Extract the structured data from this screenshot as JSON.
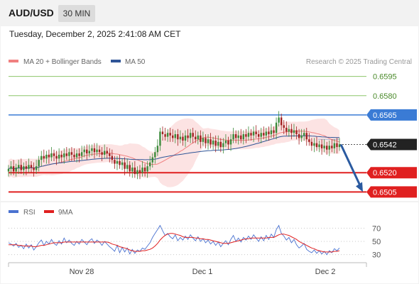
{
  "header": {
    "symbol": "AUD/USD",
    "timeframe": "30 MIN"
  },
  "datetime": "Tuesday, December 2, 2025 2:41:08 AM CET",
  "legend": {
    "ma20": "MA 20 + Bollinger Bands",
    "ma50": "MA 50"
  },
  "credit": "Research © 2025 Trading Central",
  "colors": {
    "ma20": "#f08080",
    "ma50": "#2f5597",
    "up": "#3a8a3a",
    "down": "#a02020",
    "resistance_green": "#8cc66a",
    "pivot_blue": "#3a7bd5",
    "support_red": "#e02020",
    "arrow": "#2a5aa0",
    "rsi": "#4a72d0",
    "rsi_ma": "#e02020"
  },
  "chart_data": [
    {
      "type": "candlestick",
      "title": "",
      "ylim": [
        0.6498,
        0.6602
      ],
      "x_tick_labels": [
        "Nov 28",
        "Dec 1",
        "Dec 2"
      ],
      "levels": [
        {
          "value": 0.6595,
          "label": "0.6595",
          "style": "resistance"
        },
        {
          "value": 0.658,
          "label": "0.6580",
          "style": "resistance"
        },
        {
          "value": 0.6565,
          "label": "0.6565",
          "style": "pivot"
        },
        {
          "value": 0.6542,
          "label": "0.6542",
          "style": "last"
        },
        {
          "value": 0.652,
          "label": "0.6520",
          "style": "support"
        },
        {
          "value": 0.6505,
          "label": "0.6505",
          "style": "support"
        }
      ],
      "forecast_arrow": {
        "from": 0.6542,
        "to": 0.6505,
        "direction": "down"
      },
      "series": [
        {
          "name": "MA 20 + Bollinger Bands"
        },
        {
          "name": "MA 50"
        }
      ],
      "close": [
        0.6523,
        0.6525,
        0.6521,
        0.6524,
        0.6526,
        0.6522,
        0.6525,
        0.6523,
        0.6526,
        0.6524,
        0.6522,
        0.6525,
        0.653,
        0.6533,
        0.6531,
        0.6534,
        0.6532,
        0.6535,
        0.6533,
        0.6531,
        0.6534,
        0.6532,
        0.6535,
        0.6533,
        0.6536,
        0.6534,
        0.6532,
        0.6535,
        0.6533,
        0.6536,
        0.6538,
        0.6535,
        0.6537,
        0.6539,
        0.6536,
        0.6538,
        0.6536,
        0.6534,
        0.6537,
        0.6535,
        0.6533,
        0.653,
        0.6527,
        0.6529,
        0.6526,
        0.6528,
        0.6523,
        0.6526,
        0.6521,
        0.6524,
        0.6519,
        0.6522,
        0.652,
        0.6524,
        0.6521,
        0.6525,
        0.6528,
        0.6532,
        0.6536,
        0.6541,
        0.6552,
        0.655,
        0.6548,
        0.6551,
        0.6549,
        0.6547,
        0.655,
        0.6546,
        0.6548,
        0.6545,
        0.6549,
        0.6547,
        0.6551,
        0.6548,
        0.6546,
        0.6549,
        0.6544,
        0.6547,
        0.6543,
        0.6546,
        0.6542,
        0.6545,
        0.6541,
        0.6544,
        0.654,
        0.6543,
        0.6545,
        0.6542,
        0.6546,
        0.655,
        0.6547,
        0.6549,
        0.6546,
        0.655,
        0.6548,
        0.6551,
        0.6549,
        0.6552,
        0.655,
        0.6548,
        0.6551,
        0.6549,
        0.6552,
        0.655,
        0.6553,
        0.6551,
        0.6559,
        0.6563,
        0.6557,
        0.6555,
        0.6552,
        0.6554,
        0.6551,
        0.6553,
        0.655,
        0.6547,
        0.6549,
        0.6551,
        0.6546,
        0.6544,
        0.6541,
        0.6543,
        0.654,
        0.6542,
        0.6539,
        0.6541,
        0.6538,
        0.6541,
        0.6539,
        0.6543,
        0.654,
        0.6542
      ]
    },
    {
      "type": "line",
      "title": "",
      "ylim": [
        20,
        80
      ],
      "y_ticks": [
        70,
        50,
        30
      ],
      "series": [
        {
          "name": "RSI"
        },
        {
          "name": "9MA"
        }
      ],
      "rsi": [
        48,
        46,
        43,
        47,
        41,
        44,
        39,
        46,
        40,
        45,
        37,
        42,
        48,
        52,
        44,
        50,
        46,
        53,
        47,
        44,
        51,
        46,
        55,
        48,
        52,
        47,
        44,
        50,
        46,
        53,
        49,
        45,
        51,
        54,
        47,
        52,
        49,
        44,
        50,
        46,
        42,
        39,
        35,
        44,
        33,
        41,
        34,
        40,
        31,
        38,
        32,
        37,
        35,
        40,
        38,
        43,
        48,
        56,
        62,
        68,
        74,
        66,
        59,
        62,
        57,
        54,
        60,
        51,
        56,
        52,
        58,
        53,
        60,
        55,
        51,
        57,
        50,
        54,
        48,
        52,
        46,
        50,
        44,
        49,
        42,
        47,
        51,
        45,
        53,
        59,
        50,
        55,
        49,
        56,
        52,
        58,
        53,
        60,
        55,
        50,
        57,
        51,
        59,
        53,
        61,
        56,
        68,
        74,
        62,
        58,
        52,
        56,
        48,
        53,
        45,
        40,
        43,
        47,
        38,
        35,
        33,
        37,
        32,
        36,
        31,
        35,
        30,
        36,
        33,
        39,
        36,
        40
      ],
      "ma9": [
        45,
        45,
        45,
        45,
        44,
        44,
        43,
        43,
        43,
        43,
        42,
        42,
        43,
        44,
        44,
        45,
        46,
        47,
        48,
        48,
        48,
        48,
        49,
        49,
        49,
        49,
        49,
        49,
        49,
        49,
        49,
        49,
        49,
        49,
        49,
        49,
        49,
        49,
        49,
        49,
        48,
        46,
        45,
        44,
        42,
        41,
        40,
        39,
        37,
        36,
        35,
        35,
        35,
        36,
        36,
        37,
        38,
        40,
        43,
        47,
        52,
        56,
        59,
        61,
        62,
        62,
        61,
        60,
        59,
        57,
        56,
        56,
        56,
        56,
        55,
        55,
        54,
        54,
        53,
        53,
        52,
        51,
        50,
        49,
        48,
        47,
        47,
        47,
        48,
        49,
        50,
        51,
        52,
        53,
        54,
        54,
        55,
        55,
        55,
        55,
        55,
        55,
        55,
        56,
        56,
        56,
        58,
        60,
        61,
        61,
        60,
        59,
        57,
        55,
        53,
        50,
        48,
        46,
        44,
        42,
        40,
        39,
        37,
        36,
        35,
        34,
        34,
        34,
        34,
        35,
        35,
        36
      ]
    }
  ]
}
